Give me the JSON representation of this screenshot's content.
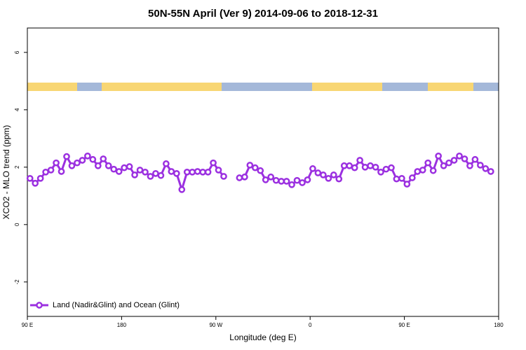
{
  "chart_data": {
    "type": "line",
    "title": "50N-55N April (Ver 9)   2014-09-06 to 2018-12-31",
    "x_label": "Longitude (deg E)",
    "y_label": "XCO2 - MLO trend (ppm)",
    "xlim": [
      90,
      540
    ],
    "xticks": [
      {
        "value": 90,
        "label": "90 E"
      },
      180,
      {
        "value": 270,
        "label": "90 W"
      },
      {
        "value": 360,
        "label": "0"
      },
      {
        "value": 450,
        "label": "90 E"
      },
      {
        "value": 540,
        "label": "180"
      }
    ],
    "ylim": [
      -3.2,
      6.85
    ],
    "yticks": [
      -2,
      0,
      2,
      4,
      6
    ],
    "legend": "bottom-left",
    "x": [
      92.5,
      97.5,
      102.5,
      107.5,
      112.5,
      117.5,
      122.5,
      127.5,
      132.5,
      137.5,
      142.5,
      147.5,
      152.5,
      157.5,
      162.5,
      167.5,
      172.5,
      177.5,
      182.5,
      187.5,
      192.5,
      197.5,
      202.5,
      207.5,
      212.5,
      217.5,
      222.5,
      227.5,
      232.5,
      237.5,
      242.5,
      247.5,
      252.5,
      257.5,
      262.5,
      267.5,
      272.5,
      277.5,
      282.5,
      287.5,
      292.5,
      297.5,
      302.5,
      307.5,
      312.5,
      317.5,
      322.5,
      327.5,
      332.5,
      337.5,
      342.5,
      347.5,
      352.5,
      357.5,
      362.5,
      367.5,
      372.5,
      377.5,
      382.5,
      387.5,
      392.5,
      397.5,
      402.5,
      407.5,
      412.5,
      417.5,
      422.5,
      427.5,
      432.5,
      437.5,
      442.5,
      447.5,
      452.5,
      457.5,
      462.5,
      467.5,
      472.5,
      477.5,
      482.5,
      487.5,
      492.5,
      497.5,
      502.5,
      507.5,
      512.5,
      517.5,
      522.5,
      527.5,
      532.5
    ],
    "series": [
      {
        "name": "Land (Nadir&Glint) and Ocean (Glint)",
        "color": "#9b30e0",
        "values": [
          1.61,
          1.44,
          1.61,
          1.83,
          1.9,
          2.15,
          1.85,
          2.37,
          2.05,
          2.15,
          2.24,
          2.39,
          2.27,
          2.05,
          2.29,
          2.05,
          1.93,
          1.85,
          1.98,
          2.02,
          1.73,
          1.9,
          1.83,
          1.68,
          1.78,
          1.71,
          2.12,
          1.85,
          1.78,
          1.22,
          1.83,
          1.83,
          1.85,
          1.83,
          1.83,
          2.15,
          1.9,
          1.68,
          null,
          null,
          1.63,
          1.66,
          2.07,
          1.98,
          1.88,
          1.56,
          1.66,
          1.54,
          1.51,
          1.51,
          1.39,
          1.54,
          1.46,
          1.56,
          1.95,
          1.8,
          1.73,
          1.61,
          1.73,
          1.59,
          2.05,
          2.05,
          1.98,
          2.24,
          2.0,
          2.05,
          2.0,
          1.83,
          1.93,
          1.98,
          1.59,
          1.61,
          1.41,
          1.63,
          1.85,
          1.9,
          2.15,
          1.88,
          2.39,
          2.05,
          2.15,
          2.24,
          2.39,
          2.29,
          2.05,
          2.27,
          2.07,
          1.95,
          1.85
        ]
      }
    ]
  }
}
